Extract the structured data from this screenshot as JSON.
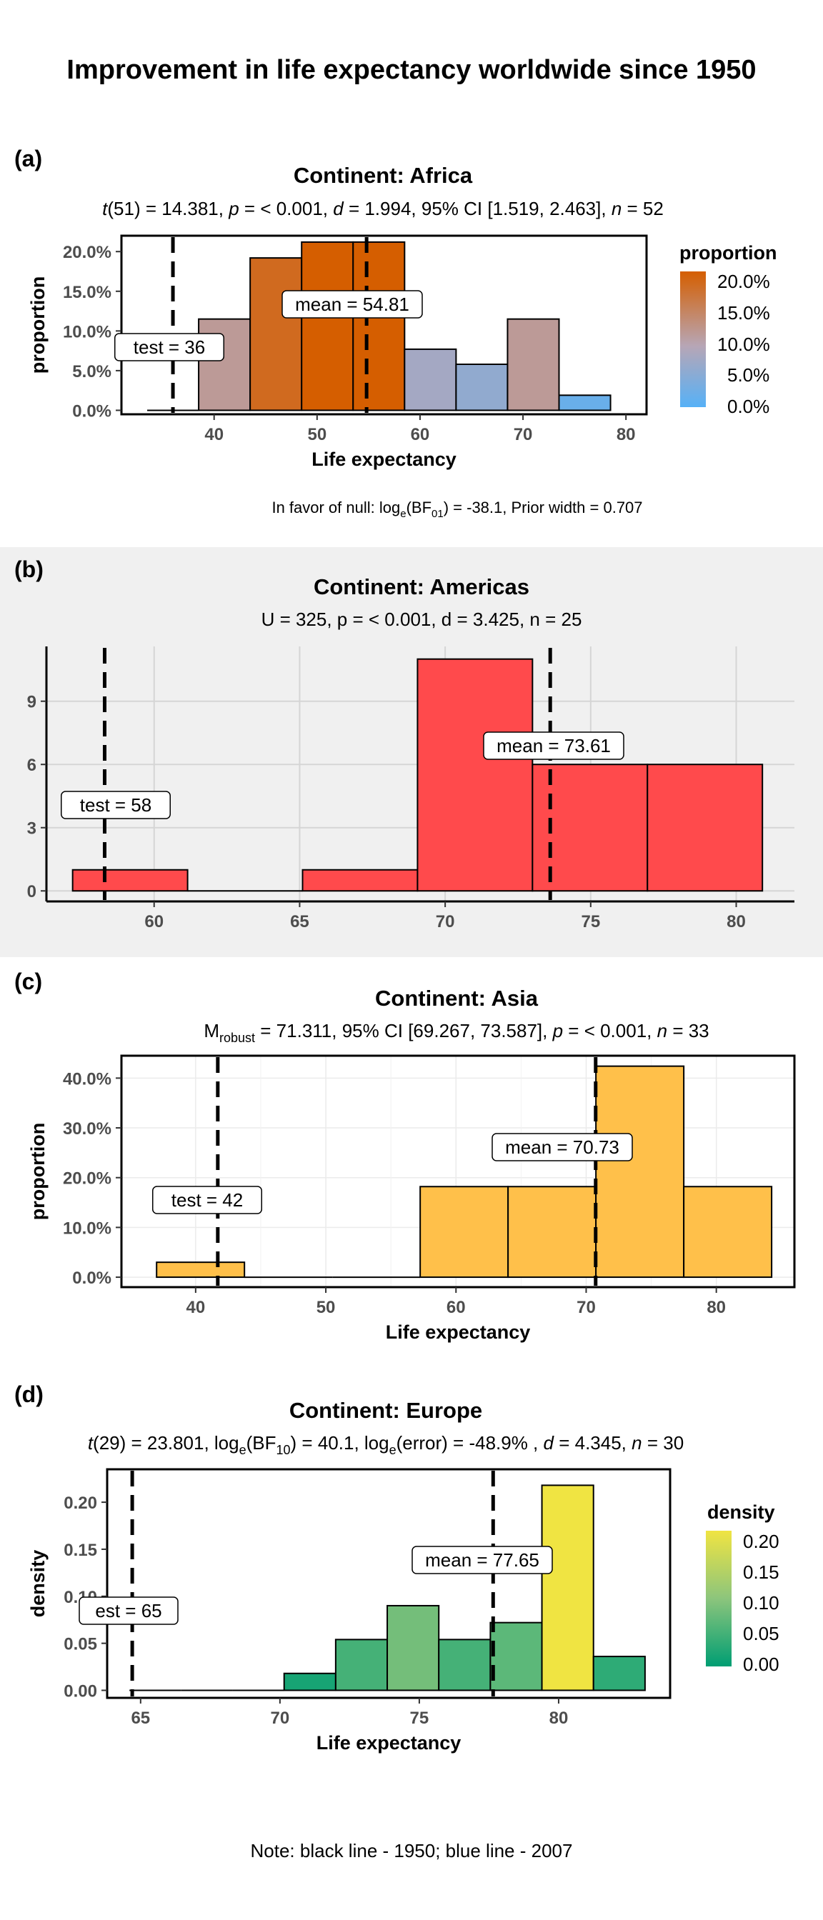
{
  "title": "Improvement in life expectancy worldwide since 1950",
  "note": "Note: black line - 1950; blue line - 2007",
  "bf_note": {
    "prefix": "In favor of null: log",
    "sub1": "e",
    "mid": "(BF",
    "sub2": "01",
    "suffix": ") = -38.1, Prior width = 0.707"
  },
  "colors": {
    "panel_b_background": "#f0f0f0",
    "americas_fill": "#ff4a4c",
    "asia_fill": "#ffc04a",
    "proportion_low": "#56b1f7",
    "proportion_high": "#d55e00",
    "density_low": "#009e73",
    "density_high": "#f0e442"
  },
  "panels": [
    {
      "tag": "(a)",
      "title": "Continent: Africa",
      "subtitle": {
        "stat": "t",
        "df": "(51)",
        "text": " = 14.381, ",
        "p": "p",
        "ptext": " = < 0.001, ",
        "d": "d",
        "dtext": " = 1.994, 95% CI [1.519, 2.463], ",
        "n": "n",
        "ntext": " = 52"
      },
      "test_label": "test = 36",
      "mean_label": "mean = 54.81",
      "legend": {
        "title": "proportion",
        "labels": [
          "20.0%",
          "15.0%",
          "10.0%",
          "5.0%",
          "0.0%"
        ]
      }
    },
    {
      "tag": "(b)",
      "title": "Continent: Americas",
      "subtitle": "U = 325, p = < 0.001, d = 3.425, n = 25",
      "test_label": "test = 58",
      "mean_label": "mean = 73.61"
    },
    {
      "tag": "(c)",
      "title": "Continent: Asia",
      "subtitle": {
        "m": "M",
        "msub": "robust",
        "text": " = 71.311, 95% CI [69.267, 73.587], ",
        "p": "p",
        "ptext": " = < 0.001, ",
        "n": "n",
        "ntext": " = 33"
      },
      "test_label": "test = 42",
      "mean_label": "mean = 70.73"
    },
    {
      "tag": "(d)",
      "title": "Continent: Europe",
      "subtitle": {
        "stat": "t",
        "df": "(29)",
        "a": " = 23.801, log",
        "asub": "e",
        "b": "(BF",
        "bsub": "10",
        "c": ") = 40.1, log",
        "csub": "e",
        "e": "(error) = -48.9% , ",
        "d": "d",
        "dtext": " = 4.345, ",
        "n": "n",
        "ntext": " = 30"
      },
      "test_label": "est = 65",
      "mean_label": "mean = 77.65",
      "legend": {
        "title": "density",
        "labels": [
          "0.20",
          "0.15",
          "0.10",
          "0.05",
          "0.00"
        ]
      }
    }
  ],
  "chart_data": [
    {
      "type": "bar",
      "panel": "(a)",
      "xlabel": "Life expectancy",
      "ylabel": "proportion",
      "xlim": [
        31,
        82
      ],
      "ylim": [
        -0.005,
        0.22
      ],
      "xticks": [
        40,
        50,
        60,
        70,
        80
      ],
      "yticks": [
        0,
        0.05,
        0.1,
        0.15,
        0.2
      ],
      "ytick_labels": [
        "0.0%",
        "5.0%",
        "10.0%",
        "15.0%",
        "20.0%"
      ],
      "bins": [
        {
          "x0": 33.5,
          "x1": 38.5,
          "y": 0.0
        },
        {
          "x0": 38.5,
          "x1": 43.5,
          "y": 0.115
        },
        {
          "x0": 43.5,
          "x1": 48.5,
          "y": 0.192
        },
        {
          "x0": 48.5,
          "x1": 53.5,
          "y": 0.212
        },
        {
          "x0": 53.5,
          "x1": 58.5,
          "y": 0.212
        },
        {
          "x0": 58.5,
          "x1": 63.5,
          "y": 0.077
        },
        {
          "x0": 63.5,
          "x1": 68.5,
          "y": 0.058
        },
        {
          "x0": 68.5,
          "x1": 73.5,
          "y": 0.115
        },
        {
          "x0": 73.5,
          "x1": 78.5,
          "y": 0.019
        }
      ],
      "test_value": 36,
      "mean_value": 54.81,
      "grid": false
    },
    {
      "type": "bar",
      "panel": "(b)",
      "xlabel": "",
      "ylabel": "",
      "xlim": [
        56.3,
        82
      ],
      "ylim": [
        -0.5,
        11.6
      ],
      "xticks": [
        60,
        65,
        70,
        75,
        80
      ],
      "yticks": [
        0,
        3,
        6,
        9
      ],
      "bins": [
        {
          "x0": 57.2,
          "x1": 61.15,
          "y": 1
        },
        {
          "x0": 61.15,
          "x1": 65.1,
          "y": 0
        },
        {
          "x0": 65.1,
          "x1": 69.05,
          "y": 1
        },
        {
          "x0": 69.05,
          "x1": 73.0,
          "y": 11
        },
        {
          "x0": 73.0,
          "x1": 76.95,
          "y": 6
        },
        {
          "x0": 76.95,
          "x1": 80.9,
          "y": 6
        }
      ],
      "test_value": 58.3,
      "mean_value": 73.61,
      "grid": true
    },
    {
      "type": "bar",
      "panel": "(c)",
      "xlabel": "Life expectancy",
      "ylabel": "proportion",
      "xlim": [
        34.3,
        86
      ],
      "ylim": [
        -0.02,
        0.445
      ],
      "xticks": [
        40,
        50,
        60,
        70,
        80
      ],
      "yticks": [
        0,
        0.1,
        0.2,
        0.3,
        0.4
      ],
      "ytick_labels": [
        "0.0%",
        "10.0%",
        "20.0%",
        "30.0%",
        "40.0%"
      ],
      "bins": [
        {
          "x0": 37.0,
          "x1": 43.75,
          "y": 0.03
        },
        {
          "x0": 43.75,
          "x1": 50.5,
          "y": 0.0
        },
        {
          "x0": 50.5,
          "x1": 57.25,
          "y": 0.0
        },
        {
          "x0": 57.25,
          "x1": 64.0,
          "y": 0.182
        },
        {
          "x0": 64.0,
          "x1": 70.75,
          "y": 0.182
        },
        {
          "x0": 70.75,
          "x1": 77.5,
          "y": 0.424
        },
        {
          "x0": 77.5,
          "x1": 84.25,
          "y": 0.182
        }
      ],
      "test_value": 41.7,
      "mean_value": 70.73,
      "grid": true
    },
    {
      "type": "bar",
      "panel": "(d)",
      "xlabel": "Life expectancy",
      "ylabel": "density",
      "xlim": [
        63.8,
        84.0
      ],
      "ylim": [
        -0.008,
        0.235
      ],
      "xticks": [
        65,
        70,
        75,
        80
      ],
      "yticks": [
        0,
        0.05,
        0.1,
        0.15,
        0.2
      ],
      "ytick_labels": [
        "0.00",
        "0.05",
        "0.10",
        "0.15",
        "0.20"
      ],
      "bins": [
        {
          "x0": 64.6,
          "x1": 66.45,
          "y": 0.0
        },
        {
          "x0": 66.45,
          "x1": 68.3,
          "y": 0.0
        },
        {
          "x0": 68.3,
          "x1": 70.15,
          "y": 0.0
        },
        {
          "x0": 70.15,
          "x1": 72.0,
          "y": 0.018
        },
        {
          "x0": 72.0,
          "x1": 73.85,
          "y": 0.054
        },
        {
          "x0": 73.85,
          "x1": 75.7,
          "y": 0.09
        },
        {
          "x0": 75.7,
          "x1": 77.55,
          "y": 0.054
        },
        {
          "x0": 77.55,
          "x1": 79.4,
          "y": 0.072
        },
        {
          "x0": 79.4,
          "x1": 81.25,
          "y": 0.218
        },
        {
          "x0": 81.25,
          "x1": 83.1,
          "y": 0.036
        }
      ],
      "test_value": 64.7,
      "mean_value": 77.65,
      "grid": false
    }
  ]
}
